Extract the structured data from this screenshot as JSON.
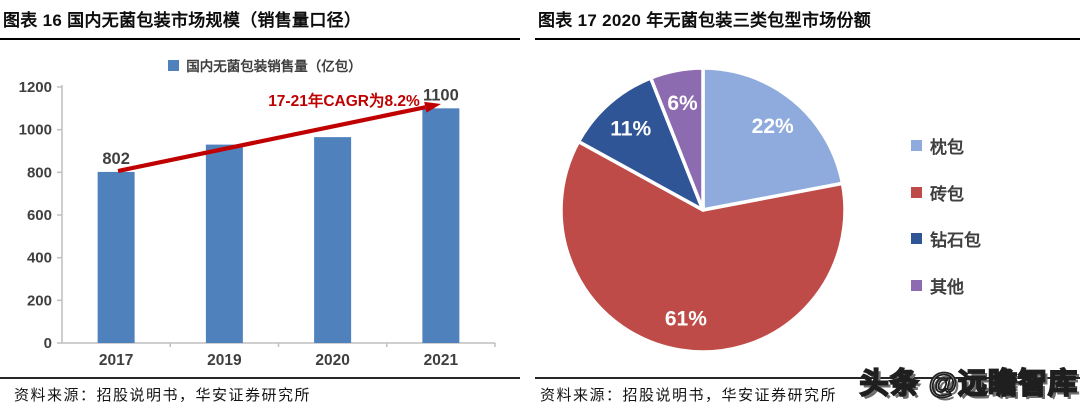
{
  "figures": {
    "left": {
      "title": "图表 16 国内无菌包装市场规模（销售量口径）",
      "source": "资料来源：招股说明书，华安证券研究所"
    },
    "right": {
      "title": "图表 17 2020 年无菌包装三类包型市场份额",
      "source": "资料来源：招股说明书，华安证券研究所"
    },
    "watermark": "头条 @远瞻智库"
  },
  "chart_data": [
    {
      "type": "bar",
      "legend": "国内无菌包装销售量（亿包）",
      "legend_position": "top",
      "categories": [
        "2017",
        "2019",
        "2020",
        "2021"
      ],
      "values": [
        802,
        930,
        965,
        1100
      ],
      "bar_labels": [
        "802",
        "",
        "",
        "1100"
      ],
      "annotation": "17-21年CAGR为8.2%",
      "xlabel": "",
      "ylabel": "",
      "ylim": [
        0,
        1200
      ],
      "yticks": [
        0,
        200,
        400,
        600,
        800,
        1000,
        1200
      ],
      "grid": false,
      "colors": {
        "bar": "#4F81BD",
        "annotation": "#C00000",
        "axis": "#BFBFBF",
        "tick_text": "#3f3f3f"
      }
    },
    {
      "type": "pie",
      "labels": [
        "枕包",
        "砖包",
        "钻石包",
        "其他"
      ],
      "values": [
        22,
        61,
        11,
        6
      ],
      "value_labels": [
        "22%",
        "61%",
        "11%",
        "6%"
      ],
      "colors": [
        "#8FAADC",
        "#BF4B48",
        "#2F5597",
        "#8C6BB0"
      ],
      "start_angle_deg": 0,
      "direction": "clockwise",
      "legend_position": "right",
      "label_color": "#FFFFFF"
    }
  ]
}
